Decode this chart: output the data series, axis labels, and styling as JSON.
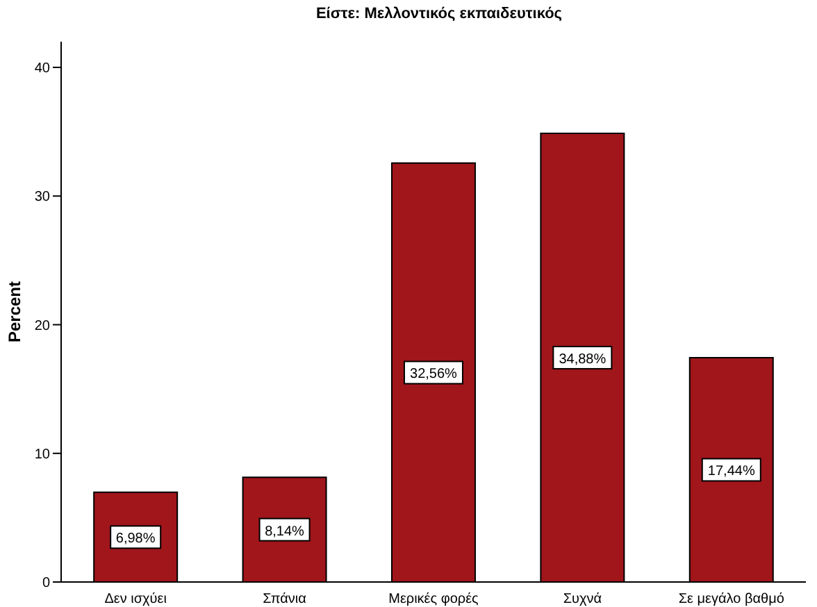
{
  "chart_data": {
    "type": "bar",
    "title": "Είστε: Μελλοντικός εκπαιδευτικός",
    "ylabel": "Percent",
    "categories": [
      "Δεν ισχύει",
      "Σπάνια",
      "Μερικές φορές",
      "Συχνά",
      "Σε μεγάλο βαθμό"
    ],
    "values": [
      6.98,
      8.14,
      32.56,
      34.88,
      17.44
    ],
    "value_labels": [
      "6,98%",
      "8,14%",
      "32,56%",
      "34,88%",
      "17,44%"
    ],
    "color": "#a0161b",
    "ylim": [
      0,
      42
    ],
    "yticks": [
      0,
      10,
      20,
      30,
      40
    ],
    "grid": false,
    "legend": false
  }
}
